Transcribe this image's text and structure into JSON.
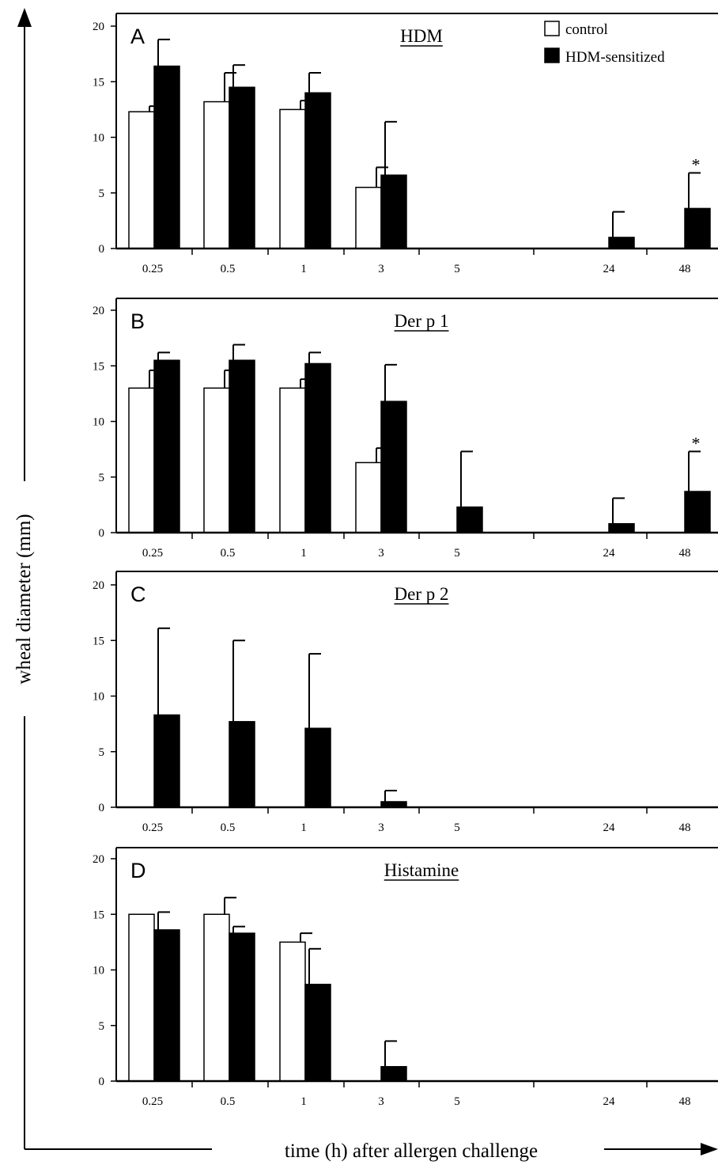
{
  "figure": {
    "ylabel": "wheal diameter (mm)",
    "xlabel": "time (h) after allergen challenge"
  },
  "legend": [
    {
      "label": "control",
      "color": "#ffffff"
    },
    {
      "label": "HDM-sensitized",
      "color": "#000000"
    }
  ],
  "chart_data": [
    {
      "type": "bar",
      "panel": "A",
      "title": "HDM",
      "categories": [
        "0.25",
        "0.5",
        "1",
        "3",
        "5",
        "24",
        "48"
      ],
      "yticks": [
        "0",
        "5",
        "10",
        "15",
        "20"
      ],
      "ylim": [
        0,
        20
      ],
      "series": [
        {
          "name": "control",
          "values": [
            12.3,
            13.2,
            12.5,
            5.5,
            0,
            0,
            0
          ],
          "errors": [
            0.5,
            2.6,
            0.8,
            1.8,
            0,
            0,
            0
          ]
        },
        {
          "name": "HDM-sensitized",
          "values": [
            16.4,
            14.5,
            14.0,
            6.6,
            0,
            1.0,
            3.6
          ],
          "errors": [
            2.4,
            2.0,
            1.8,
            4.8,
            0,
            2.3,
            3.2
          ]
        }
      ],
      "annotations": [
        {
          "category": "48",
          "series": "HDM-sensitized",
          "text": "*"
        }
      ]
    },
    {
      "type": "bar",
      "panel": "B",
      "title": "Der p 1",
      "categories": [
        "0.25",
        "0.5",
        "1",
        "3",
        "5",
        "24",
        "48"
      ],
      "yticks": [
        "0",
        "5",
        "10",
        "15",
        "20"
      ],
      "ylim": [
        0,
        20
      ],
      "series": [
        {
          "name": "control",
          "values": [
            13.0,
            13.0,
            13.0,
            6.3,
            0,
            0,
            0
          ],
          "errors": [
            1.6,
            1.6,
            0.8,
            1.3,
            0,
            0,
            0
          ]
        },
        {
          "name": "HDM-sensitized",
          "values": [
            15.5,
            15.5,
            15.2,
            11.8,
            2.3,
            0.8,
            3.7
          ],
          "errors": [
            0.7,
            1.4,
            1.0,
            3.3,
            5.0,
            2.3,
            3.6
          ]
        }
      ],
      "annotations": [
        {
          "category": "48",
          "series": "HDM-sensitized",
          "text": "*"
        }
      ]
    },
    {
      "type": "bar",
      "panel": "C",
      "title": "Der p 2",
      "categories": [
        "0.25",
        "0.5",
        "1",
        "3",
        "5",
        "24",
        "48"
      ],
      "yticks": [
        "0",
        "5",
        "10",
        "15",
        "20"
      ],
      "ylim": [
        0,
        20
      ],
      "series": [
        {
          "name": "control",
          "values": [
            0,
            0,
            0,
            0,
            0,
            0,
            0
          ],
          "errors": [
            0,
            0,
            0,
            0,
            0,
            0,
            0
          ]
        },
        {
          "name": "HDM-sensitized",
          "values": [
            8.3,
            7.7,
            7.1,
            0.5,
            0,
            0,
            0
          ],
          "errors": [
            7.8,
            7.3,
            6.7,
            1.0,
            0,
            0,
            0
          ]
        }
      ],
      "annotations": []
    },
    {
      "type": "bar",
      "panel": "D",
      "title": "Histamine",
      "categories": [
        "0.25",
        "0.5",
        "1",
        "3",
        "5",
        "24",
        "48"
      ],
      "yticks": [
        "0",
        "5",
        "10",
        "15",
        "20"
      ],
      "ylim": [
        0,
        20
      ],
      "series": [
        {
          "name": "control",
          "values": [
            15.0,
            15.0,
            12.5,
            0,
            0,
            0,
            0
          ],
          "errors": [
            0,
            1.5,
            0.8,
            0,
            0,
            0,
            0
          ]
        },
        {
          "name": "HDM-sensitized",
          "values": [
            13.6,
            13.3,
            8.7,
            1.3,
            0,
            0,
            0
          ],
          "errors": [
            1.6,
            0.6,
            3.2,
            2.3,
            0,
            0,
            0
          ]
        }
      ],
      "annotations": []
    }
  ]
}
